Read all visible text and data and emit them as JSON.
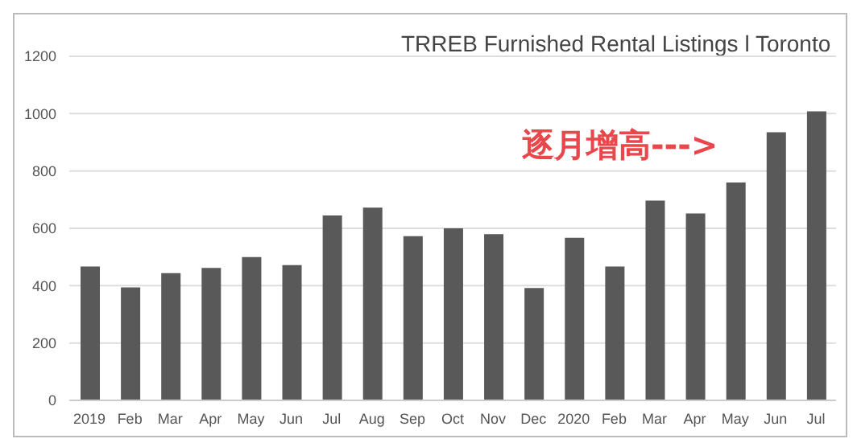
{
  "chart_data": {
    "type": "bar",
    "title": "TRREB Furnished Rental Listings l Toronto",
    "categories": [
      "2019",
      "Feb",
      "Mar",
      "Apr",
      "May",
      "Jun",
      "Jul",
      "Aug",
      "Sep",
      "Oct",
      "Nov",
      "Dec",
      "2020",
      "Feb",
      "Mar",
      "Apr",
      "May",
      "Jun",
      "Jul"
    ],
    "values": [
      467,
      394,
      444,
      462,
      500,
      472,
      645,
      672,
      573,
      600,
      580,
      392,
      567,
      467,
      697,
      652,
      760,
      935,
      1008
    ],
    "color": "#595959",
    "ylim": [
      0,
      1200
    ],
    "yticks": [
      0,
      200,
      400,
      600,
      800,
      1000,
      1200
    ],
    "grid": "y",
    "annotations": [
      "逐月增高--->"
    ]
  }
}
